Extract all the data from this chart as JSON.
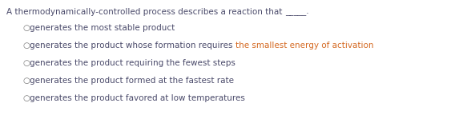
{
  "title_text": "A thermodynamically-controlled process describes a reaction that _____.",
  "title_plain": "A thermodynamically-controlled process describes a reaction that ",
  "title_underline": "_____.",
  "options": [
    {
      "parts": [
        {
          "text": "generates the most stable product",
          "color": "#4a4a6a"
        }
      ]
    },
    {
      "parts": [
        {
          "text": "generates the product whose formation requires ",
          "color": "#4a4a6a"
        },
        {
          "text": "the smallest energy of activation",
          "color": "#d46820"
        }
      ]
    },
    {
      "parts": [
        {
          "text": "generates the product requiring the fewest steps",
          "color": "#4a4a6a"
        }
      ]
    },
    {
      "parts": [
        {
          "text": "generates the product formed at the fastest rate",
          "color": "#4a4a6a"
        }
      ]
    },
    {
      "parts": [
        {
          "text": "generates the product favored at low temperatures",
          "color": "#4a4a6a"
        }
      ]
    }
  ],
  "title_color": "#4a4a6a",
  "background_color": "#ffffff",
  "font_size": 7.5,
  "fig_width": 5.88,
  "fig_height": 1.59,
  "dpi": 100
}
